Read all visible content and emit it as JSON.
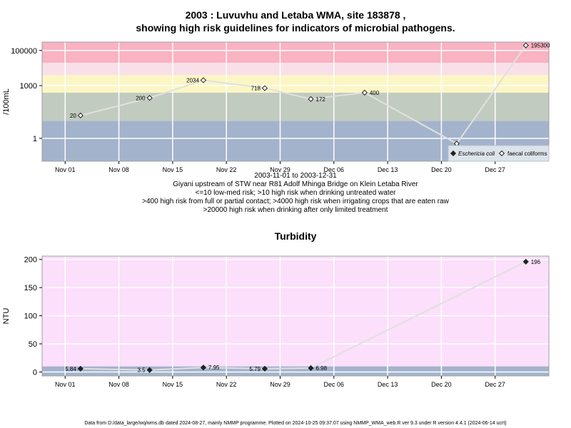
{
  "top_title": {
    "line1": "2003 : Luvuvhu and Letaba WMA, site 183878 ,",
    "line2": "showing high risk guidelines for indicators of microbial pathogens."
  },
  "captions": [
    "2003-11-01 to 2003-12-31",
    "Giyani upstream of STW near R81 Adolf Mhinga Bridge on Klein Letaba River",
    "<=10 low-med risk; >10 high risk when drinking untreated water",
    ">400 high risk from full or partial contact; >4000 high risk when irrigating crops that are eaten raw",
    ">20000 high risk when drinking after only limited treatment"
  ],
  "footer": "Data from D:/data_large/wq/wms.db dated 2024-08-27, mainly NMMP programme. Plotted on 2024-10-25 09:37:07 using NMMP_WMA_web.R ver 9.3 under R version 4.4.1 (2024-06-14 ucrt)",
  "colors": {
    "band_blue": "#a3b3cc",
    "band_sage": "#c2cbbf",
    "band_yellow": "#fbf6c4",
    "band_pinklight": "#f9e0e8",
    "band_pink": "#f9b3c3",
    "turbidity_bg": "#fbdffb",
    "grid": "#ffffff",
    "line": "#e0e0e0",
    "border": "#a0a0a0"
  },
  "chart_data": [
    {
      "type": "line",
      "title": "",
      "ylabel": "/100mL",
      "xlabel": "",
      "y_scale": "log10",
      "ylim": [
        0.05,
        300000
      ],
      "yticks": [
        1,
        1000,
        100000
      ],
      "ytick_labels": [
        "1",
        "1000",
        "100000"
      ],
      "xlim": [
        "2003-10-29",
        "2004-01-03"
      ],
      "xticks": [
        "2003-11-01",
        "2003-11-08",
        "2003-11-15",
        "2003-11-22",
        "2003-11-29",
        "2003-12-06",
        "2003-12-13",
        "2003-12-20",
        "2003-12-27"
      ],
      "xtick_labels": [
        "Nov 01",
        "Nov 08",
        "Nov 15",
        "Nov 22",
        "Nov 29",
        "Dec 06",
        "Dec 13",
        "Dec 20",
        "Dec 27"
      ],
      "grid": true,
      "legend_position": "bottom-right",
      "legend": [
        "Eschericia coli",
        "faecal coliforms"
      ],
      "bands": [
        {
          "from": 0.05,
          "to": 10
        },
        {
          "from": 10,
          "to": 400
        },
        {
          "from": 400,
          "to": 4000
        },
        {
          "from": 4000,
          "to": 20000
        },
        {
          "from": 20000,
          "to": 300000
        }
      ],
      "series": [
        {
          "name": "faecal coliforms",
          "marker": "open-diamond",
          "points": [
            {
              "x": "2003-11-03",
              "y": 20,
              "label": "20"
            },
            {
              "x": "2003-11-12",
              "y": 200,
              "label": "200"
            },
            {
              "x": "2003-11-19",
              "y": 2034,
              "label": "2034"
            },
            {
              "x": "2003-11-27",
              "y": 718,
              "label": "718"
            },
            {
              "x": "2003-12-03",
              "y": 172,
              "label": "172"
            },
            {
              "x": "2003-12-10",
              "y": 400,
              "label": "400"
            },
            {
              "x": "2003-12-22",
              "y": 0.5,
              "label": ""
            },
            {
              "x": "2003-12-31",
              "y": 195300,
              "label": "195300"
            }
          ]
        }
      ]
    },
    {
      "type": "line",
      "title": "Turbidity",
      "ylabel": "NTU",
      "xlabel": "",
      "ylim": [
        -7,
        206
      ],
      "yticks": [
        0,
        50,
        100,
        150,
        200
      ],
      "ytick_labels": [
        "0",
        "50",
        "100",
        "150",
        "200"
      ],
      "xlim": [
        "2003-10-29",
        "2004-01-03"
      ],
      "xticks": [
        "2003-11-01",
        "2003-11-08",
        "2003-11-15",
        "2003-11-22",
        "2003-11-29",
        "2003-12-06",
        "2003-12-13",
        "2003-12-20",
        "2003-12-27"
      ],
      "xtick_labels": [
        "Nov 01",
        "Nov 08",
        "Nov 15",
        "Nov 22",
        "Nov 29",
        "Dec 06",
        "Dec 13",
        "Dec 20",
        "Dec 27"
      ],
      "grid": true,
      "bands": [
        {
          "from": -7,
          "to": 10
        },
        {
          "from": 10,
          "to": 206
        }
      ],
      "series": [
        {
          "name": "",
          "marker": "filled-diamond",
          "points": [
            {
              "x": "2003-11-03",
              "y": 5.84,
              "label": "5.84"
            },
            {
              "x": "2003-11-12",
              "y": 3.5,
              "label": "3.5"
            },
            {
              "x": "2003-11-19",
              "y": 7.95,
              "label": "7.95"
            },
            {
              "x": "2003-11-27",
              "y": 5.79,
              "label": "5.79"
            },
            {
              "x": "2003-12-03",
              "y": 6.98,
              "label": "6.98"
            },
            {
              "x": "2003-12-31",
              "y": 196,
              "label": "196"
            }
          ]
        }
      ]
    }
  ]
}
